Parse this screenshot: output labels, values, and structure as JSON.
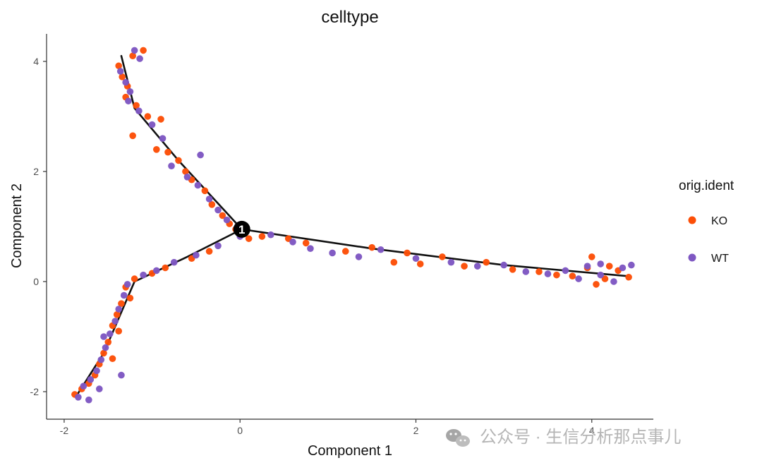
{
  "chart_data": {
    "type": "scatter",
    "title": "celltype",
    "xlabel": "Component 1",
    "ylabel": "Component 2",
    "xlim": [
      -2.2,
      4.7
    ],
    "ylim": [
      -2.5,
      4.5
    ],
    "xticks": [
      -2,
      0,
      2,
      4
    ],
    "yticks": [
      -2,
      0,
      2,
      4
    ],
    "grid": false,
    "legend": {
      "title": "orig.ident",
      "position": "right",
      "entries": [
        {
          "name": "KO",
          "color": "#FC4E07"
        },
        {
          "name": "WT",
          "color": "#7E57C2"
        }
      ]
    },
    "trajectory": {
      "branch_point": {
        "x": 0.02,
        "y": 0.95,
        "label": "1"
      },
      "branches": [
        {
          "name": "upper-left",
          "path": [
            [
              0.02,
              0.95
            ],
            [
              -0.7,
              2.2
            ],
            [
              -1.2,
              3.15
            ],
            [
              -1.35,
              4.1
            ]
          ]
        },
        {
          "name": "lower-left",
          "path": [
            [
              0.02,
              0.95
            ],
            [
              -0.6,
              0.45
            ],
            [
              -1.2,
              0.0
            ],
            [
              -1.55,
              -1.3
            ],
            [
              -1.85,
              -2.05
            ]
          ]
        },
        {
          "name": "right",
          "path": [
            [
              0.02,
              0.95
            ],
            [
              1.5,
              0.6
            ],
            [
              3.0,
              0.3
            ],
            [
              4.4,
              0.1
            ]
          ]
        }
      ]
    },
    "series": [
      {
        "name": "KO",
        "color": "#FC4E07",
        "points": [
          [
            -1.38,
            3.92
          ],
          [
            -1.34,
            3.72
          ],
          [
            -1.28,
            3.55
          ],
          [
            -1.22,
            4.1
          ],
          [
            -1.1,
            4.2
          ],
          [
            -1.3,
            3.35
          ],
          [
            -1.18,
            3.2
          ],
          [
            -1.05,
            3.0
          ],
          [
            -1.22,
            2.65
          ],
          [
            -0.9,
            2.95
          ],
          [
            -0.95,
            2.4
          ],
          [
            -0.82,
            2.35
          ],
          [
            -0.7,
            2.2
          ],
          [
            -0.62,
            2.0
          ],
          [
            -0.55,
            1.85
          ],
          [
            -0.4,
            1.65
          ],
          [
            -0.32,
            1.4
          ],
          [
            -0.2,
            1.2
          ],
          [
            -0.12,
            1.05
          ],
          [
            -0.05,
            0.95
          ],
          [
            0.25,
            0.82
          ],
          [
            0.55,
            0.78
          ],
          [
            0.75,
            0.7
          ],
          [
            1.2,
            0.55
          ],
          [
            1.5,
            0.62
          ],
          [
            1.75,
            0.35
          ],
          [
            1.9,
            0.52
          ],
          [
            2.05,
            0.32
          ],
          [
            2.3,
            0.45
          ],
          [
            2.55,
            0.28
          ],
          [
            2.8,
            0.35
          ],
          [
            3.1,
            0.22
          ],
          [
            3.4,
            0.18
          ],
          [
            3.6,
            0.12
          ],
          [
            3.78,
            0.1
          ],
          [
            3.95,
            0.25
          ],
          [
            4.0,
            0.45
          ],
          [
            4.15,
            0.05
          ],
          [
            4.3,
            0.2
          ],
          [
            4.42,
            0.08
          ],
          [
            4.2,
            0.28
          ],
          [
            4.05,
            -0.05
          ],
          [
            0.1,
            0.78
          ],
          [
            -0.35,
            0.55
          ],
          [
            -0.55,
            0.42
          ],
          [
            -0.85,
            0.25
          ],
          [
            -1.0,
            0.15
          ],
          [
            -1.2,
            0.05
          ],
          [
            -1.3,
            -0.1
          ],
          [
            -1.35,
            -0.4
          ],
          [
            -1.4,
            -0.6
          ],
          [
            -1.45,
            -0.8
          ],
          [
            -1.5,
            -1.1
          ],
          [
            -1.55,
            -1.3
          ],
          [
            -1.6,
            -1.5
          ],
          [
            -1.65,
            -1.7
          ],
          [
            -1.72,
            -1.85
          ],
          [
            -1.8,
            -1.95
          ],
          [
            -1.88,
            -2.05
          ],
          [
            -1.45,
            -1.4
          ],
          [
            -1.38,
            -0.9
          ],
          [
            -1.25,
            -0.3
          ]
        ]
      },
      {
        "name": "WT",
        "color": "#7E57C2",
        "points": [
          [
            -1.36,
            3.82
          ],
          [
            -1.3,
            3.62
          ],
          [
            -1.25,
            3.45
          ],
          [
            -1.2,
            4.2
          ],
          [
            -1.14,
            4.05
          ],
          [
            -1.27,
            3.28
          ],
          [
            -1.15,
            3.1
          ],
          [
            -1.0,
            2.85
          ],
          [
            -0.88,
            2.6
          ],
          [
            -0.45,
            2.3
          ],
          [
            -0.78,
            2.1
          ],
          [
            -0.6,
            1.9
          ],
          [
            -0.48,
            1.75
          ],
          [
            -0.35,
            1.5
          ],
          [
            -0.25,
            1.3
          ],
          [
            -0.15,
            1.12
          ],
          [
            0.05,
            0.88
          ],
          [
            0.35,
            0.85
          ],
          [
            0.6,
            0.72
          ],
          [
            0.8,
            0.6
          ],
          [
            1.05,
            0.52
          ],
          [
            1.35,
            0.45
          ],
          [
            1.6,
            0.58
          ],
          [
            2.0,
            0.42
          ],
          [
            2.4,
            0.35
          ],
          [
            2.7,
            0.28
          ],
          [
            3.0,
            0.3
          ],
          [
            3.25,
            0.18
          ],
          [
            3.5,
            0.14
          ],
          [
            3.7,
            0.2
          ],
          [
            3.85,
            0.05
          ],
          [
            3.95,
            0.28
          ],
          [
            4.1,
            0.12
          ],
          [
            4.25,
            0.0
          ],
          [
            4.35,
            0.25
          ],
          [
            4.45,
            0.3
          ],
          [
            4.1,
            0.32
          ],
          [
            0.0,
            0.82
          ],
          [
            -0.25,
            0.65
          ],
          [
            -0.5,
            0.48
          ],
          [
            -0.75,
            0.35
          ],
          [
            -0.95,
            0.2
          ],
          [
            -1.1,
            0.12
          ],
          [
            -1.28,
            -0.05
          ],
          [
            -1.32,
            -0.25
          ],
          [
            -1.38,
            -0.5
          ],
          [
            -1.42,
            -0.72
          ],
          [
            -1.48,
            -0.95
          ],
          [
            -1.53,
            -1.2
          ],
          [
            -1.58,
            -1.42
          ],
          [
            -1.63,
            -1.62
          ],
          [
            -1.7,
            -1.78
          ],
          [
            -1.78,
            -1.9
          ],
          [
            -1.84,
            -2.1
          ],
          [
            -1.6,
            -1.95
          ],
          [
            -1.72,
            -2.15
          ],
          [
            -1.35,
            -1.7
          ],
          [
            -1.55,
            -1.0
          ]
        ]
      }
    ]
  },
  "watermark": {
    "text": "公众号 · 生信分析那点事儿"
  }
}
